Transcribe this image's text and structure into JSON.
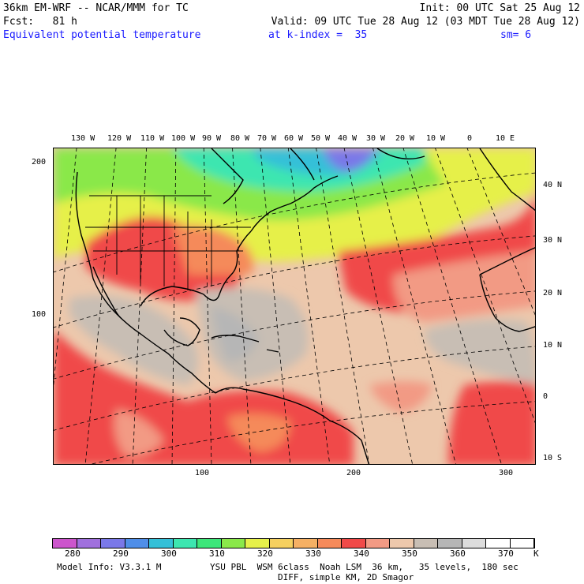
{
  "header": {
    "model_line": "36km EM-WRF -- NCAR/MMM for TC",
    "init_line": "Init: 00 UTC Sat 25 Aug 12",
    "fcst_line": "Fcst:   81 h",
    "valid_line": "Valid: 09 UTC Tue 28 Aug 12 (03 MDT Tue 28 Aug 12)",
    "field_name": "Equivalent potential temperature",
    "level": "at k-index =  35",
    "smoothing": "sm= 6"
  },
  "axes": {
    "top_lon_labels": [
      "130 W",
      "120 W",
      "110 W",
      "100 W",
      "90 W",
      "80 W",
      "70 W",
      "60 W",
      "50 W",
      "40 W",
      "30 W",
      "20 W",
      "10 W",
      "0",
      "10 E"
    ],
    "right_lat_labels": [
      "40 N",
      "30 N",
      "20 N",
      "10 N",
      "0",
      "10 S"
    ],
    "left_grid_labels": [
      "200",
      "100"
    ],
    "bottom_grid_labels": [
      "100",
      "200",
      "300"
    ]
  },
  "colorbar": {
    "colors": [
      "#cc55cc",
      "#a070dd",
      "#7a78e8",
      "#4f8ee8",
      "#35c0d8",
      "#3de6b0",
      "#3de67a",
      "#8ae84a",
      "#e6f04a",
      "#f5d060",
      "#f5b064",
      "#f58a5a",
      "#f04a48",
      "#f29a84",
      "#edc8ac",
      "#c8beb4",
      "#b6b6b6",
      "#dcdcdc",
      "#ffffff",
      "#ffffff"
    ],
    "labels": [
      "280",
      "290",
      "300",
      "310",
      "320",
      "330",
      "340",
      "350",
      "360",
      "370"
    ],
    "unit": "K"
  },
  "footer": {
    "line1_left": "Model Info: V3.3.1 M",
    "line1_right": "YSU PBL  WSM 6class  Noah LSM  36 km,   35 levels,  180 sec",
    "line2": "DIFF, simple KM, 2D Smagor"
  }
}
